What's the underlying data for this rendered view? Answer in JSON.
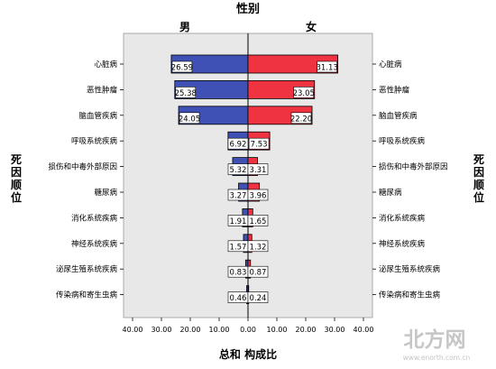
{
  "chart_data": {
    "type": "bar",
    "subtype": "population-pyramid",
    "title": "性别",
    "xlabel": "总和 构成比",
    "ylabel_left": "死因顺位",
    "ylabel_right": "死因顺位",
    "xlim": [
      -40,
      40
    ],
    "x_tick_labels": [
      "40.00",
      "30.00",
      "20.00",
      "10.00",
      "0.00",
      "10.00",
      "20.00",
      "30.00",
      "40.00"
    ],
    "categories": [
      "心脏病",
      "恶性肿瘤",
      "脑血管疾病",
      "呼吸系统疾病",
      "损伤和中毒外部原因",
      "糖尿病",
      "消化系统疾病",
      "神经系统疾病",
      "泌尿生殖系统疾病",
      "传染病和寄生虫病"
    ],
    "series": [
      {
        "name": "男",
        "color": "#3f51b5",
        "values": [
          26.59,
          25.38,
          24.05,
          6.92,
          5.32,
          3.27,
          1.91,
          1.57,
          0.83,
          0.46
        ],
        "labels": [
          "26.59",
          "25.38",
          "24.05",
          "6.92",
          "5.32",
          "3.27",
          "1.91",
          "1.57",
          "0.83",
          "0.46"
        ]
      },
      {
        "name": "女",
        "color": "#ef3340",
        "values": [
          31.13,
          23.05,
          22.2,
          7.53,
          3.31,
          3.96,
          1.65,
          1.32,
          0.87,
          0.24
        ],
        "labels": [
          "31.13",
          "23.05",
          "22.20",
          "7.53",
          "3.31",
          "3.96",
          "1.65",
          "1.32",
          "0.87",
          "0.24"
        ]
      }
    ],
    "plot_background": "#e8e8e8",
    "grid": false
  },
  "watermark": {
    "text": "北方网",
    "url": "www.enorth.com.cn"
  }
}
